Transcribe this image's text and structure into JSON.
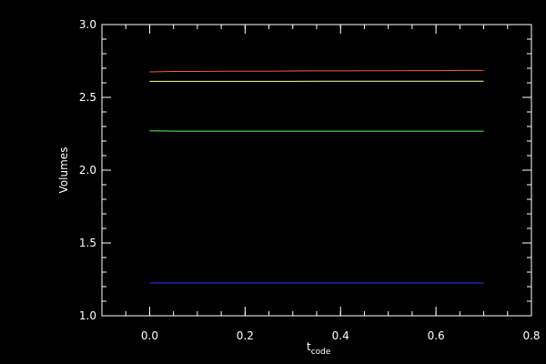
{
  "chart_data": {
    "type": "line",
    "title": "",
    "xlabel_main": "t",
    "xlabel_sub": "code",
    "ylabel": "Volumes",
    "xlim": [
      -0.1,
      0.8
    ],
    "ylim": [
      1.0,
      3.0
    ],
    "xticks": [
      0.0,
      0.2,
      0.4,
      0.6,
      0.8
    ],
    "xticklabels": [
      "0.0",
      "0.2",
      "0.4",
      "0.6",
      "0.8"
    ],
    "yticks": [
      1.0,
      1.5,
      2.0,
      2.5,
      3.0
    ],
    "yticklabels": [
      "1.0",
      "1.5",
      "2.0",
      "2.5",
      "3.0"
    ],
    "grid": false,
    "colors": {
      "background": "#000000",
      "axes": "#ffffff"
    },
    "series": [
      {
        "color": "#ff5a28",
        "x": [
          0.0,
          0.05,
          0.1,
          0.15,
          0.2,
          0.25,
          0.3,
          0.35,
          0.4,
          0.45,
          0.5,
          0.55,
          0.6,
          0.65,
          0.7
        ],
        "values": [
          2.675,
          2.678,
          2.678,
          2.68,
          2.68,
          2.68,
          2.681,
          2.682,
          2.682,
          2.683,
          2.683,
          2.684,
          2.684,
          2.685,
          2.685
        ]
      },
      {
        "color": "#ffff99",
        "x": [
          0.0,
          0.05,
          0.1,
          0.15,
          0.2,
          0.25,
          0.3,
          0.35,
          0.4,
          0.45,
          0.5,
          0.55,
          0.6,
          0.65,
          0.7
        ],
        "values": [
          2.61,
          2.61,
          2.61,
          2.61,
          2.61,
          2.61,
          2.61,
          2.611,
          2.611,
          2.611,
          2.611,
          2.611,
          2.611,
          2.611,
          2.611
        ]
      },
      {
        "color": "#55ff55",
        "x": [
          0.0,
          0.05,
          0.1,
          0.15,
          0.2,
          0.25,
          0.3,
          0.35,
          0.4,
          0.45,
          0.5,
          0.55,
          0.6,
          0.65,
          0.7
        ],
        "values": [
          2.27,
          2.268,
          2.268,
          2.268,
          2.268,
          2.268,
          2.268,
          2.268,
          2.268,
          2.268,
          2.268,
          2.268,
          2.268,
          2.268,
          2.268
        ]
      },
      {
        "color": "#3333ff",
        "x": [
          0.0,
          0.7
        ],
        "values": [
          1.225,
          1.225
        ]
      }
    ]
  }
}
